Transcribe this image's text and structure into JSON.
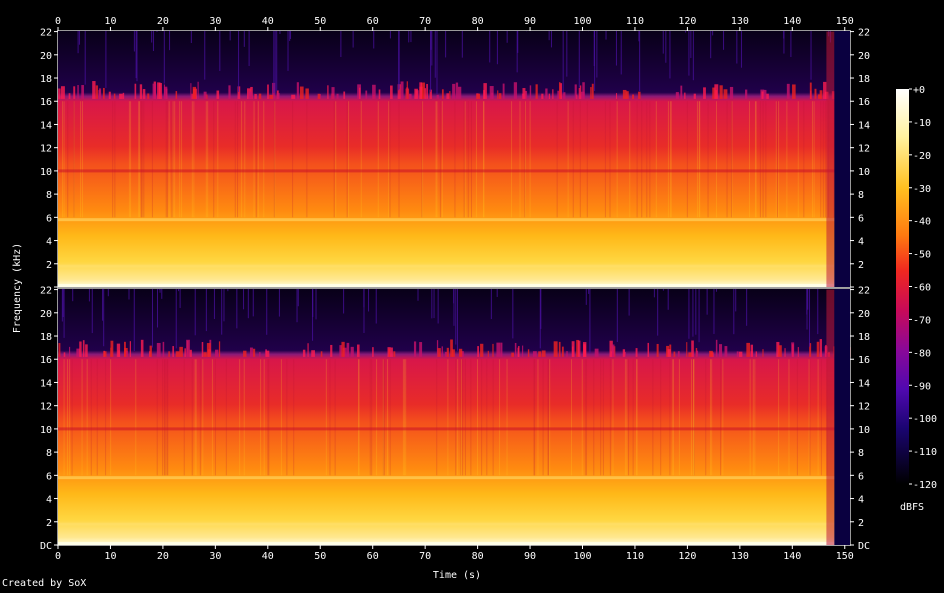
{
  "chart_data": {
    "type": "heatmap",
    "xlabel": "Time (s)",
    "ylabel": "Frequency (kHz)",
    "x_ticks": [
      "0",
      "10",
      "20",
      "30",
      "40",
      "50",
      "60",
      "70",
      "80",
      "90",
      "100",
      "110",
      "120",
      "130",
      "140",
      "150"
    ],
    "xlim": [
      0,
      151
    ],
    "y_ticks": [
      "DC",
      "2",
      "4",
      "6",
      "8",
      "10",
      "12",
      "14",
      "16",
      "18",
      "20",
      "22"
    ],
    "ylim": [
      0,
      22.05
    ],
    "channels": 2,
    "colorbar": {
      "label": "dBFS",
      "ticks": [
        "+0",
        "-10",
        "-20",
        "-30",
        "-40",
        "-50",
        "-60",
        "-70",
        "-80",
        "-90",
        "-100",
        "-110",
        "-120"
      ],
      "range": [
        -120,
        0
      ]
    },
    "colors": {
      "hot": "#ffffe0",
      "mid": "#ff3a14",
      "cold": "#000000",
      "accent": "#5a18b0"
    }
  },
  "footer": "Created by SoX"
}
